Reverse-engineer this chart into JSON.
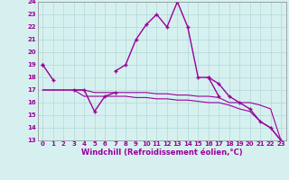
{
  "x_values": [
    0,
    1,
    2,
    3,
    4,
    5,
    6,
    7,
    8,
    9,
    10,
    11,
    12,
    13,
    14,
    15,
    16,
    17,
    18,
    19,
    20,
    21,
    22,
    23
  ],
  "line1": [
    19.0,
    17.8,
    null,
    17.0,
    17.0,
    15.3,
    16.5,
    16.8,
    null,
    null,
    null,
    null,
    null,
    null,
    null,
    null,
    18.0,
    16.5,
    null,
    null,
    null,
    null,
    null,
    null
  ],
  "line2": [
    19.0,
    null,
    null,
    null,
    null,
    null,
    null,
    18.5,
    19.0,
    21.0,
    22.2,
    23.0,
    22.0,
    24.0,
    22.0,
    18.0,
    18.0,
    17.5,
    16.5,
    16.0,
    15.5,
    14.5,
    14.0,
    13.0
  ],
  "line3": [
    17.0,
    17.0,
    17.0,
    17.0,
    17.0,
    16.8,
    16.8,
    16.8,
    16.8,
    16.8,
    16.8,
    16.7,
    16.7,
    16.6,
    16.6,
    16.5,
    16.5,
    16.4,
    16.0,
    16.0,
    16.0,
    15.8,
    15.5,
    13.0
  ],
  "line4": [
    17.0,
    17.0,
    17.0,
    17.0,
    16.5,
    16.5,
    16.5,
    16.5,
    16.5,
    16.4,
    16.4,
    16.3,
    16.3,
    16.2,
    16.2,
    16.1,
    16.0,
    16.0,
    15.8,
    15.5,
    15.3,
    14.5,
    14.0,
    13.0
  ],
  "bg_color": "#d6f0f0",
  "grid_color": "#b0d8d8",
  "line_color": "#990099",
  "xlabel": "Windchill (Refroidissement éolien,°C)",
  "ylim": [
    13,
    24
  ],
  "xlim": [
    -0.5,
    23.5
  ],
  "yticks": [
    13,
    14,
    15,
    16,
    17,
    18,
    19,
    20,
    21,
    22,
    23,
    24
  ],
  "tick_fontsize": 5.0,
  "xlabel_fontsize": 6.0
}
